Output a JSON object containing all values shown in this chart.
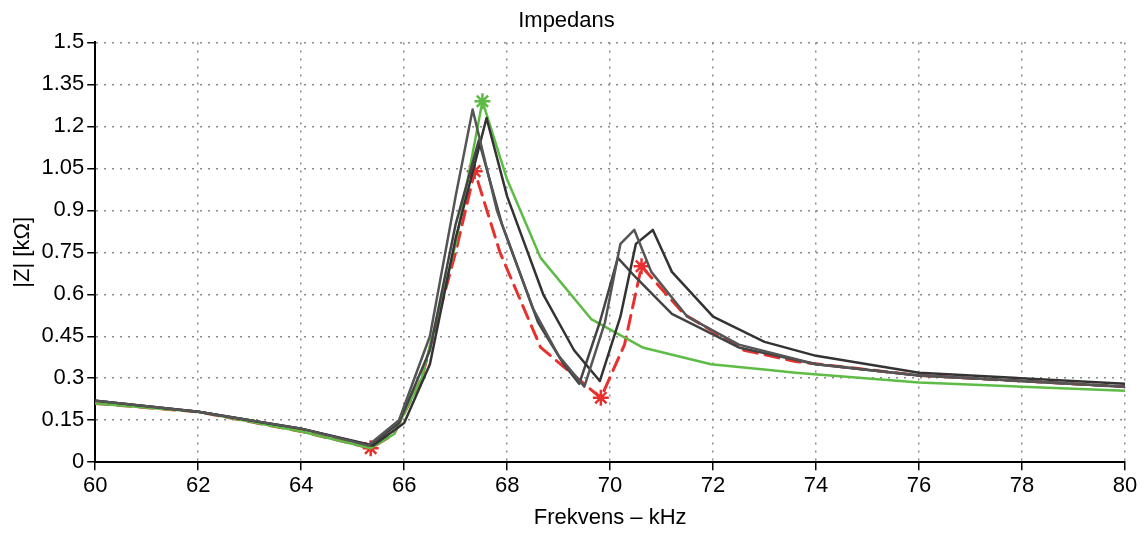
{
  "chart_data": {
    "type": "line",
    "title": "Impedans",
    "xlabel": "Frekvens – kHz",
    "ylabel": "|Z| [kΩ]",
    "xlim": [
      60,
      80
    ],
    "xticks": [
      60,
      62,
      64,
      66,
      68,
      70,
      72,
      74,
      76,
      78,
      80
    ],
    "ylim": [
      0,
      1.5
    ],
    "yticks": [
      0,
      0.15,
      0.3,
      0.45,
      0.6,
      0.75,
      0.9,
      1.05,
      1.2,
      1.35,
      1.5
    ],
    "grid": true,
    "legend": false,
    "series": [
      {
        "color": "#555555",
        "marker": "none",
        "line_style": "solid",
        "x": [
          60,
          62,
          64,
          65.3,
          65.9,
          66.5,
          67.0,
          67.33,
          67.8,
          68.5,
          69.0,
          69.5,
          69.9,
          70.2,
          70.47,
          70.8,
          71.5,
          72.5,
          74,
          76,
          80
        ],
        "values": [
          0.22,
          0.18,
          0.12,
          0.06,
          0.15,
          0.45,
          0.95,
          1.26,
          0.9,
          0.55,
          0.38,
          0.27,
          0.5,
          0.78,
          0.83,
          0.68,
          0.52,
          0.42,
          0.35,
          0.31,
          0.27
        ]
      },
      {
        "color": "#333333",
        "marker": "none",
        "line_style": "solid",
        "x": [
          60,
          62,
          64,
          65.4,
          66.0,
          66.5,
          67.0,
          67.6,
          68.0,
          68.7,
          69.3,
          69.8,
          70.2,
          70.5,
          70.83,
          71.2,
          72,
          73,
          74,
          76,
          80
        ],
        "values": [
          0.22,
          0.18,
          0.12,
          0.06,
          0.14,
          0.35,
          0.8,
          1.23,
          0.95,
          0.6,
          0.4,
          0.29,
          0.52,
          0.78,
          0.83,
          0.68,
          0.52,
          0.43,
          0.38,
          0.32,
          0.28
        ]
      },
      {
        "color": "#444444",
        "marker": "none",
        "line_style": "solid",
        "x": [
          60,
          62,
          64,
          65.35,
          65.9,
          66.5,
          67.0,
          67.45,
          67.9,
          68.6,
          69.1,
          69.4,
          69.8,
          70.15,
          70.5,
          71.2,
          72.5,
          74,
          76,
          80
        ],
        "values": [
          0.22,
          0.18,
          0.12,
          0.06,
          0.14,
          0.4,
          0.85,
          1.15,
          0.85,
          0.5,
          0.35,
          0.28,
          0.5,
          0.73,
          0.66,
          0.53,
          0.41,
          0.35,
          0.31,
          0.27
        ]
      },
      {
        "color": "#5dbb46",
        "marker": "none",
        "line_style": "solid",
        "x": [
          60,
          62,
          64,
          65.35,
          65.8,
          66.34,
          67.0,
          67.52,
          68.0,
          68.65,
          69.64,
          70.63,
          71.96,
          73.6,
          76,
          80
        ],
        "values": [
          0.21,
          0.18,
          0.11,
          0.05,
          0.1,
          0.3,
          0.78,
          1.29,
          1.01,
          0.73,
          0.51,
          0.41,
          0.35,
          0.32,
          0.285,
          0.255
        ]
      },
      {
        "color": "#e8312f",
        "marker": "none",
        "line_style": "dashed",
        "x": [
          60,
          62,
          64,
          65.35,
          65.8,
          66.34,
          67.0,
          67.37,
          67.86,
          68.65,
          69.82,
          70.28,
          70.61,
          71.43,
          72.6,
          73.6,
          76,
          80
        ],
        "values": [
          0.21,
          0.18,
          0.11,
          0.05,
          0.1,
          0.3,
          0.75,
          1.04,
          0.75,
          0.41,
          0.23,
          0.42,
          0.7,
          0.53,
          0.4,
          0.36,
          0.31,
          0.27
        ]
      },
      {
        "type": "scatter",
        "color": "#5dbb46",
        "marker": "cross",
        "x": [
          67.52
        ],
        "values": [
          1.29
        ]
      },
      {
        "type": "scatter",
        "color": "#e8312f",
        "marker": "cross",
        "x": [
          65.35,
          67.37,
          69.82,
          70.61
        ],
        "values": [
          0.05,
          1.04,
          0.23,
          0.7
        ]
      }
    ]
  }
}
